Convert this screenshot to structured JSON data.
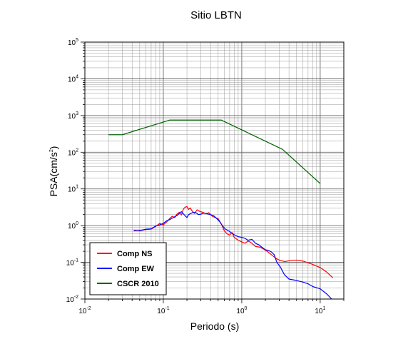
{
  "chart_data": {
    "type": "line",
    "title": "Sitio LBTN",
    "xlabel": "Periodo (s)",
    "ylabel_base": "PSA(cm/s",
    "ylabel_sup": "2",
    "ylabel_end": ")",
    "xscale": "log",
    "yscale": "log",
    "xlim": [
      0.01,
      20
    ],
    "ylim": [
      0.01,
      100000
    ],
    "grid": true,
    "legend_position": "bottom-left",
    "x_ticks": [
      {
        "base": "10",
        "exp": "-2",
        "value": 0.01
      },
      {
        "base": "10",
        "exp": "-1",
        "value": 0.1
      },
      {
        "base": "10",
        "exp": "0",
        "value": 1
      },
      {
        "base": "10",
        "exp": "1",
        "value": 10
      }
    ],
    "y_ticks": [
      {
        "base": "10",
        "exp": "-2",
        "value": 0.01
      },
      {
        "base": "10",
        "exp": "-1",
        "value": 0.1
      },
      {
        "base": "10",
        "exp": "0",
        "value": 1
      },
      {
        "base": "10",
        "exp": "1",
        "value": 10
      },
      {
        "base": "10",
        "exp": "2",
        "value": 100
      },
      {
        "base": "10",
        "exp": "3",
        "value": 1000
      },
      {
        "base": "10",
        "exp": "4",
        "value": 10000
      },
      {
        "base": "10",
        "exp": "5",
        "value": 100000
      }
    ],
    "series": [
      {
        "name": "Comp NS",
        "color": "#ff0000",
        "points": [
          [
            0.042,
            0.72
          ],
          [
            0.05,
            0.74
          ],
          [
            0.06,
            0.78
          ],
          [
            0.07,
            0.8
          ],
          [
            0.08,
            0.95
          ],
          [
            0.09,
            1.15
          ],
          [
            0.1,
            1.05
          ],
          [
            0.11,
            1.25
          ],
          [
            0.12,
            1.55
          ],
          [
            0.13,
            1.8
          ],
          [
            0.14,
            1.65
          ],
          [
            0.15,
            2.1
          ],
          [
            0.16,
            2.3
          ],
          [
            0.17,
            1.95
          ],
          [
            0.18,
            2.8
          ],
          [
            0.19,
            3.2
          ],
          [
            0.2,
            3.3
          ],
          [
            0.21,
            2.75
          ],
          [
            0.22,
            3.05
          ],
          [
            0.23,
            2.6
          ],
          [
            0.25,
            2.15
          ],
          [
            0.27,
            2.7
          ],
          [
            0.29,
            2.45
          ],
          [
            0.32,
            2.3
          ],
          [
            0.35,
            2.1
          ],
          [
            0.38,
            2.25
          ],
          [
            0.42,
            1.8
          ],
          [
            0.46,
            1.65
          ],
          [
            0.5,
            1.55
          ],
          [
            0.55,
            1.1
          ],
          [
            0.6,
            0.72
          ],
          [
            0.65,
            0.6
          ],
          [
            0.7,
            0.55
          ],
          [
            0.75,
            0.65
          ],
          [
            0.8,
            0.48
          ],
          [
            0.9,
            0.4
          ],
          [
            1.0,
            0.36
          ],
          [
            1.1,
            0.33
          ],
          [
            1.2,
            0.38
          ],
          [
            1.3,
            0.35
          ],
          [
            1.5,
            0.27
          ],
          [
            1.7,
            0.26
          ],
          [
            1.9,
            0.23
          ],
          [
            2.1,
            0.2
          ],
          [
            2.4,
            0.16
          ],
          [
            2.7,
            0.13
          ],
          [
            3.0,
            0.115
          ],
          [
            3.5,
            0.105
          ],
          [
            4.0,
            0.11
          ],
          [
            5.0,
            0.115
          ],
          [
            6.0,
            0.108
          ],
          [
            7.0,
            0.098
          ],
          [
            8.0,
            0.088
          ],
          [
            10.0,
            0.072
          ],
          [
            12.0,
            0.055
          ],
          [
            14.5,
            0.038
          ]
        ]
      },
      {
        "name": "Comp EW",
        "color": "#0000ff",
        "points": [
          [
            0.042,
            0.75
          ],
          [
            0.05,
            0.72
          ],
          [
            0.06,
            0.8
          ],
          [
            0.07,
            0.82
          ],
          [
            0.08,
            0.98
          ],
          [
            0.09,
            1.05
          ],
          [
            0.1,
            1.15
          ],
          [
            0.11,
            1.35
          ],
          [
            0.12,
            1.45
          ],
          [
            0.13,
            1.6
          ],
          [
            0.14,
            1.75
          ],
          [
            0.15,
            1.9
          ],
          [
            0.16,
            2.15
          ],
          [
            0.17,
            2.4
          ],
          [
            0.18,
            2.1
          ],
          [
            0.19,
            1.85
          ],
          [
            0.2,
            1.65
          ],
          [
            0.21,
            2.0
          ],
          [
            0.22,
            2.1
          ],
          [
            0.24,
            2.3
          ],
          [
            0.26,
            2.25
          ],
          [
            0.28,
            2.0
          ],
          [
            0.3,
            2.05
          ],
          [
            0.33,
            2.2
          ],
          [
            0.36,
            2.1
          ],
          [
            0.4,
            2.0
          ],
          [
            0.44,
            1.85
          ],
          [
            0.48,
            1.55
          ],
          [
            0.52,
            1.3
          ],
          [
            0.57,
            0.98
          ],
          [
            0.62,
            0.8
          ],
          [
            0.68,
            0.72
          ],
          [
            0.75,
            0.62
          ],
          [
            0.82,
            0.55
          ],
          [
            0.9,
            0.5
          ],
          [
            1.0,
            0.48
          ],
          [
            1.1,
            0.45
          ],
          [
            1.2,
            0.4
          ],
          [
            1.35,
            0.42
          ],
          [
            1.5,
            0.33
          ],
          [
            1.65,
            0.3
          ],
          [
            1.8,
            0.26
          ],
          [
            2.0,
            0.22
          ],
          [
            2.2,
            0.21
          ],
          [
            2.4,
            0.19
          ],
          [
            2.6,
            0.16
          ],
          [
            2.8,
            0.1
          ],
          [
            3.1,
            0.075
          ],
          [
            3.5,
            0.046
          ],
          [
            4.0,
            0.035
          ],
          [
            5.0,
            0.032
          ],
          [
            6.0,
            0.029
          ],
          [
            7.0,
            0.026
          ],
          [
            8.0,
            0.022
          ],
          [
            10.0,
            0.019
          ],
          [
            12.0,
            0.014
          ],
          [
            14.0,
            0.01
          ]
        ]
      },
      {
        "name": "CSCR 2010",
        "color": "#006400",
        "points": [
          [
            0.02,
            300
          ],
          [
            0.03,
            300
          ],
          [
            0.12,
            750
          ],
          [
            0.55,
            750
          ],
          [
            3.3,
            120
          ],
          [
            10.0,
            14
          ]
        ]
      }
    ]
  }
}
